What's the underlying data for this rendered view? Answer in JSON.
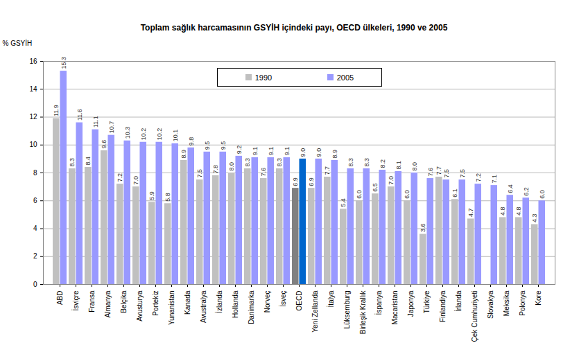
{
  "chart_data": {
    "type": "bar",
    "title": "Toplam sağlık harcamasının GSYİH içindeki payı, OECD ülkeleri, 1990 ve 2005",
    "y_label": "% GSYİH",
    "categories": [
      "ABD",
      "İsviçre",
      "Fransa",
      "Almanya",
      "Belçika",
      "Avusturya",
      "Portekiz",
      "Yunanistan",
      "Kanada",
      "Avustralya",
      "İzlanda",
      "Hollanda",
      "Danimarka",
      "Norveç",
      "İsveç",
      "OECD",
      "Yeni Zellanda",
      "İtalya",
      "Lüksemburg",
      "Birleşik Krallık",
      "İspanya",
      "Macaristan",
      "Japonya",
      "Türkiye",
      "Finlandiya",
      "İrlanda",
      "Çek Cumhuriyeti",
      "Slovakya",
      "Meksika",
      "Polonya",
      "Kore"
    ],
    "series": [
      {
        "name": "1990",
        "color": "#c0c0c0",
        "colors": [
          "#c0c0c0",
          "#c0c0c0",
          "#c0c0c0",
          "#c0c0c0",
          "#c0c0c0",
          "#c0c0c0",
          "#c0c0c0",
          "#c0c0c0",
          "#c0c0c0",
          "#c0c0c0",
          "#c0c0c0",
          "#c0c0c0",
          "#c0c0c0",
          "#c0c0c0",
          "#c0c0c0",
          "#808080",
          "#c0c0c0",
          "#c0c0c0",
          "#c0c0c0",
          "#c0c0c0",
          "#c0c0c0",
          "#c0c0c0",
          "#c0c0c0",
          "#c0c0c0",
          "#c0c0c0",
          "#c0c0c0",
          "#c0c0c0",
          "#c0c0c0",
          "#c0c0c0",
          "#c0c0c0",
          "#c0c0c0"
        ],
        "values": [
          11.9,
          8.3,
          8.4,
          9.6,
          7.2,
          7.0,
          5.9,
          5.8,
          8.9,
          7.5,
          7.8,
          8.0,
          8.3,
          7.6,
          8.3,
          6.9,
          6.9,
          7.7,
          5.4,
          6.0,
          6.5,
          7.0,
          6.0,
          3.6,
          7.7,
          6.1,
          4.7,
          null,
          4.8,
          4.8,
          4.3
        ],
        "value_labels": [
          "11.9",
          "8.3",
          "8.4",
          "9.6",
          "7.2",
          "7.0",
          "5.9",
          "5.8",
          "8.9",
          "7.5",
          "7.8",
          "8.0",
          "8.3",
          "7.6",
          "8.3",
          "6.9",
          "6.9",
          "7.7",
          "5.4",
          "6.0",
          "6.5",
          "7.0",
          "6.0",
          "3.6",
          "7.7",
          "6.1",
          "4.7",
          null,
          "4.8",
          "4.8",
          "4.3"
        ]
      },
      {
        "name": "2005",
        "color": "#9999ff",
        "colors": [
          "#9999ff",
          "#9999ff",
          "#9999ff",
          "#9999ff",
          "#9999ff",
          "#9999ff",
          "#9999ff",
          "#9999ff",
          "#9999ff",
          "#9999ff",
          "#9999ff",
          "#9999ff",
          "#9999ff",
          "#9999ff",
          "#9999ff",
          "#0066cc",
          "#9999ff",
          "#9999ff",
          "#9999ff",
          "#9999ff",
          "#9999ff",
          "#9999ff",
          "#9999ff",
          "#9999ff",
          "#9999ff",
          "#9999ff",
          "#9999ff",
          "#9999ff",
          "#9999ff",
          "#9999ff",
          "#9999ff"
        ],
        "values": [
          15.3,
          11.6,
          11.1,
          10.7,
          10.3,
          10.2,
          10.2,
          10.1,
          9.8,
          9.5,
          9.5,
          9.2,
          9.1,
          9.1,
          9.1,
          9.0,
          9.0,
          8.9,
          8.3,
          8.3,
          8.2,
          8.1,
          8.0,
          7.6,
          7.5,
          7.5,
          7.2,
          7.1,
          6.4,
          6.2,
          6.0
        ],
        "value_labels": [
          "15.3",
          "11.6",
          "11.1",
          "10.7",
          "10.3",
          "10.2",
          "10.2",
          "10.1",
          "9.8",
          "9.5",
          "9.5",
          "9.2",
          "9.1",
          "9.1",
          "9.1",
          "9.0",
          "9.0",
          "8.9",
          "8.3",
          "8.3",
          "8.2",
          "8.1",
          "8.0",
          "7.6",
          "7.5",
          "7.5",
          "7.2",
          "7.1",
          "6.4",
          "6.2",
          "6.0"
        ]
      }
    ],
    "ylim": [
      0,
      16
    ],
    "yticks": [
      0,
      2,
      4,
      6,
      8,
      10,
      12,
      14,
      16
    ],
    "grid": true,
    "data_labels": true,
    "legend": "top"
  }
}
